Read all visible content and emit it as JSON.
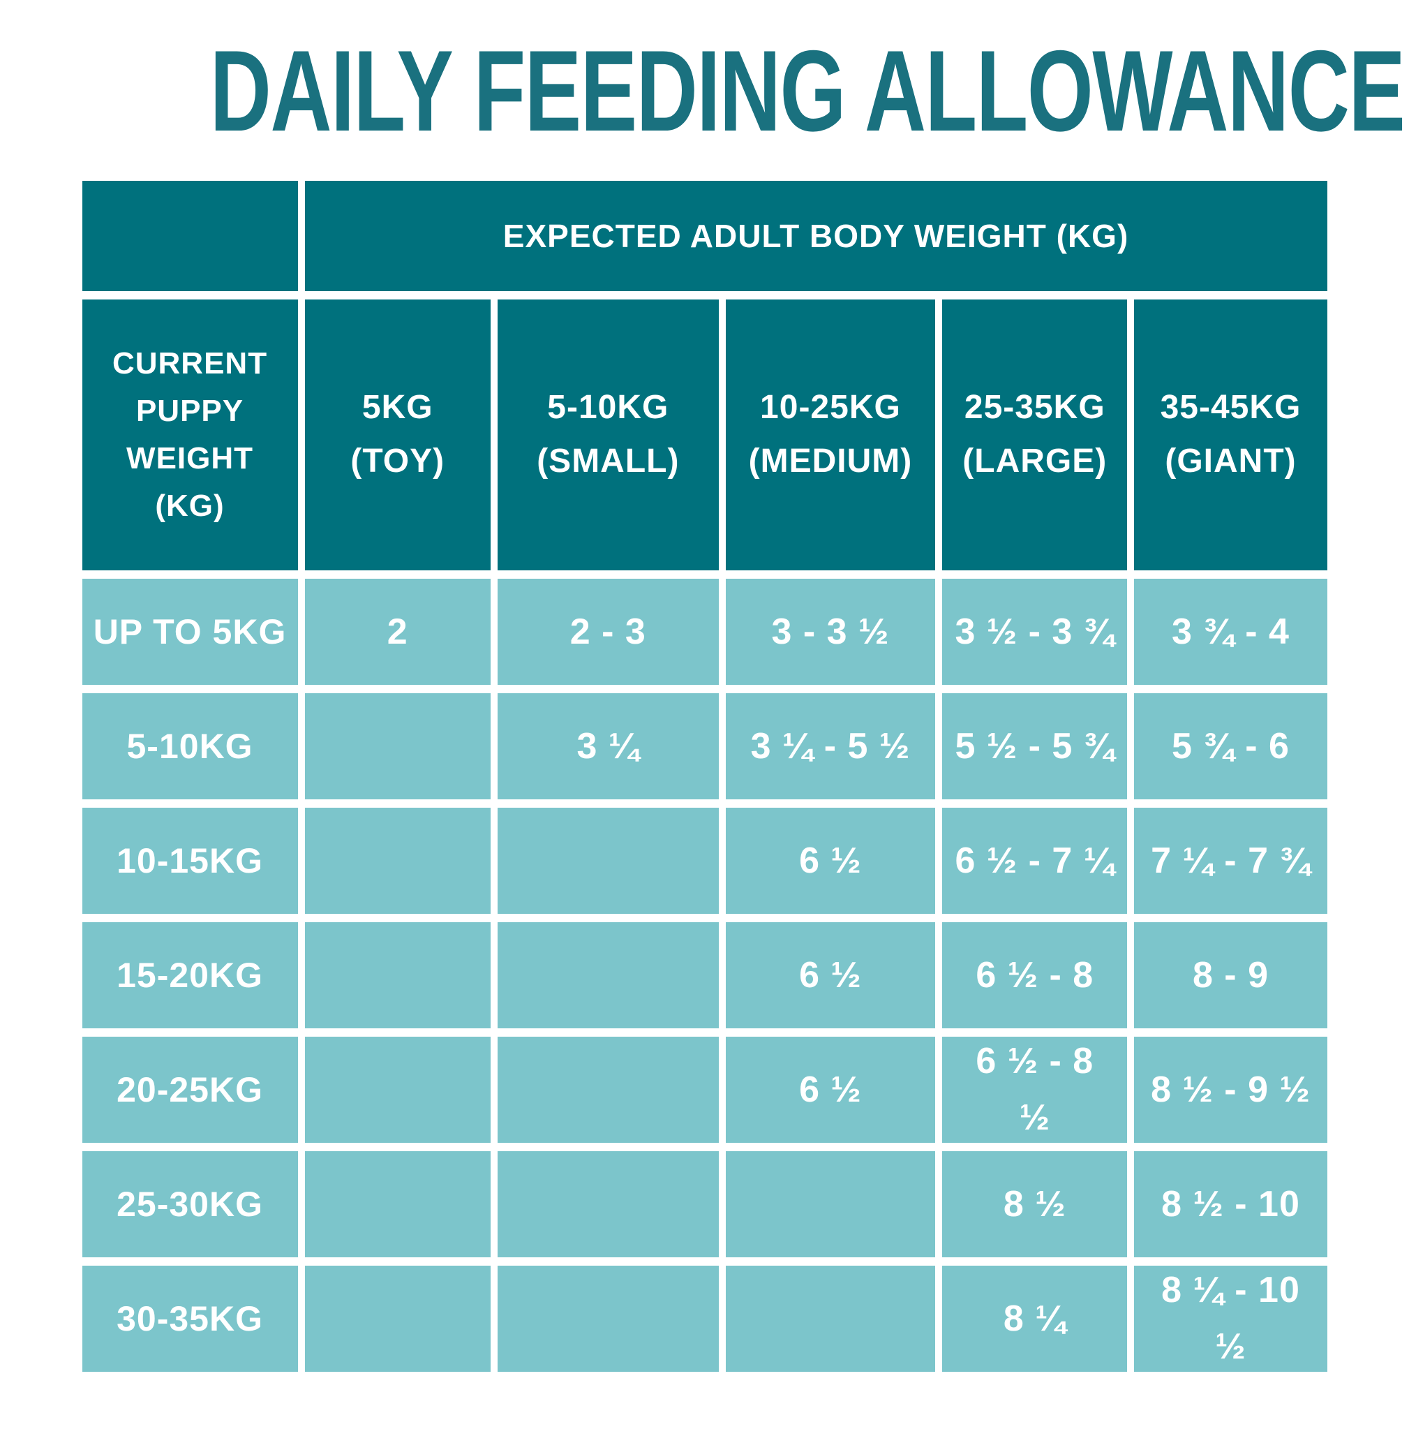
{
  "title": "DAILY FEEDING ALLOWANCE",
  "colors": {
    "dark_teal": "#00717D",
    "light_teal": "#7CC5CB",
    "title_teal": "#1A717F",
    "background": "#FFFFFF",
    "text_on_teal": "#FFFFFF"
  },
  "table": {
    "group_header": "EXPECTED ADULT BODY WEIGHT (KG)",
    "row_header": "CURRENT\nPUPPY\nWEIGHT (KG)",
    "columns": [
      {
        "range": "5KG",
        "size": "(TOY)"
      },
      {
        "range": "5-10KG",
        "size": "(SMALL)"
      },
      {
        "range": "10-25KG",
        "size": "(MEDIUM)"
      },
      {
        "range": "25-35KG",
        "size": "(LARGE)"
      },
      {
        "range": "35-45KG",
        "size": "(GIANT)"
      }
    ],
    "rows": [
      {
        "label": "UP TO 5KG",
        "values": [
          "2",
          "2 - 3",
          "3 - 3 ½",
          "3 ½ - 3 ¾",
          "3 ¾ - 4"
        ]
      },
      {
        "label": "5-10KG",
        "values": [
          "",
          "3 ¼",
          "3 ¼ - 5 ½",
          "5 ½ - 5 ¾",
          "5 ¾ - 6"
        ]
      },
      {
        "label": "10-15KG",
        "values": [
          "",
          "",
          "6 ½",
          "6 ½ - 7 ¼",
          "7 ¼ - 7 ¾"
        ]
      },
      {
        "label": "15-20KG",
        "values": [
          "",
          "",
          "6 ½",
          "6 ½ - 8",
          "8 - 9"
        ]
      },
      {
        "label": "20-25KG",
        "values": [
          "",
          "",
          "6 ½",
          "6 ½ - 8\n½",
          "8 ½ - 9 ½"
        ]
      },
      {
        "label": "25-30KG",
        "values": [
          "",
          "",
          "",
          "8 ½",
          "8 ½ - 10"
        ]
      },
      {
        "label": "30-35KG",
        "values": [
          "",
          "",
          "",
          "8 ¼",
          "8 ¼ - 10\n½"
        ]
      }
    ]
  },
  "chart_data": {
    "type": "table",
    "title": "DAILY FEEDING ALLOWANCE",
    "column_group_header": "EXPECTED ADULT BODY WEIGHT (KG)",
    "row_group_header": "CURRENT PUPPY WEIGHT (KG)",
    "columns": [
      "5KG (TOY)",
      "5-10KG (SMALL)",
      "10-25KG (MEDIUM)",
      "25-35KG (LARGE)",
      "35-45KG (GIANT)"
    ],
    "rows": [
      "UP TO 5KG",
      "5-10KG",
      "10-15KG",
      "15-20KG",
      "20-25KG",
      "25-30KG",
      "30-35KG"
    ],
    "cells": [
      [
        "2",
        "2 - 3",
        "3 - 3 ½",
        "3 ½ - 3 ¾",
        "3 ¾ - 4"
      ],
      [
        "",
        "3 ¼",
        "3 ¼ - 5 ½",
        "5 ½ - 5 ¾",
        "5 ¾ - 6"
      ],
      [
        "",
        "",
        "6 ½",
        "6 ½ - 7 ¼",
        "7 ¼ - 7 ¾"
      ],
      [
        "",
        "",
        "6 ½",
        "6 ½ - 8",
        "8 - 9"
      ],
      [
        "",
        "",
        "6 ½",
        "6 ½ - 8 ½",
        "8 ½ - 9 ½"
      ],
      [
        "",
        "",
        "",
        "8 ½",
        "8 ½ - 10"
      ],
      [
        "",
        "",
        "",
        "8 ¼",
        "8 ¼ - 10 ½"
      ]
    ]
  }
}
